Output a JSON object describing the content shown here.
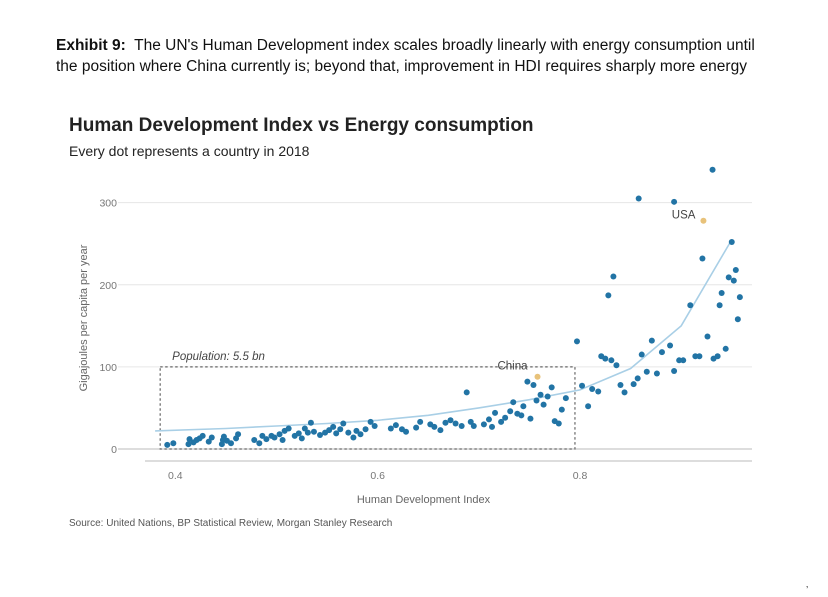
{
  "exhibit": {
    "label": "Exhibit 9:",
    "text": "The UN's Human Development index scales broadly linearly with energy consumption until the position where China currently is; beyond that, improvement in HDI requires sharply more energy"
  },
  "source": "Source: United Nations, BP Statistical Review, Morgan Stanley Research",
  "corner_mark": "’",
  "chart_data": {
    "type": "scatter",
    "title": "Human Development Index vs Energy consumption",
    "subtitle": "Every dot represents a country in 2018",
    "xlabel": "Human Development Index",
    "ylabel": "Gigajoules per capita per year",
    "xlim": [
      0.37,
      0.97
    ],
    "ylim": [
      0,
      330
    ],
    "xticks": [
      0.4,
      0.6,
      0.8
    ],
    "xtick_labels": [
      "0.4",
      "0.6",
      "0.8"
    ],
    "yticks": [
      0,
      100,
      200,
      300
    ],
    "ytick_labels": [
      "0",
      "100",
      "200",
      "300"
    ],
    "grid": true,
    "colors": {
      "dot": "#2274a5",
      "highlight": "#e8c27a",
      "trend": "#a9cfe6",
      "box": "#666666",
      "grid": "#e6e6e6"
    },
    "box": {
      "label": "Population: 5.5 bn",
      "x_range": [
        0.385,
        0.795
      ],
      "y_range": [
        0,
        100
      ]
    },
    "trend": {
      "x": [
        0.38,
        0.45,
        0.5,
        0.55,
        0.6,
        0.65,
        0.7,
        0.75,
        0.8,
        0.85,
        0.9,
        0.95
      ],
      "y": [
        22,
        25,
        28,
        31,
        35,
        41,
        50,
        60,
        72,
        98,
        150,
        255
      ]
    },
    "highlighted": [
      {
        "name": "China",
        "x": 0.758,
        "y": 88
      },
      {
        "name": "USA",
        "x": 0.922,
        "y": 278
      }
    ],
    "points": [
      [
        0.392,
        5
      ],
      [
        0.398,
        7
      ],
      [
        0.413,
        6
      ],
      [
        0.414,
        12
      ],
      [
        0.418,
        8
      ],
      [
        0.421,
        11
      ],
      [
        0.424,
        13
      ],
      [
        0.427,
        16
      ],
      [
        0.433,
        9
      ],
      [
        0.436,
        14
      ],
      [
        0.446,
        6
      ],
      [
        0.447,
        11
      ],
      [
        0.448,
        15
      ],
      [
        0.451,
        10
      ],
      [
        0.455,
        7
      ],
      [
        0.46,
        13
      ],
      [
        0.462,
        18
      ],
      [
        0.478,
        11
      ],
      [
        0.483,
        7
      ],
      [
        0.486,
        16
      ],
      [
        0.49,
        12
      ],
      [
        0.495,
        16
      ],
      [
        0.498,
        14
      ],
      [
        0.503,
        18
      ],
      [
        0.506,
        11
      ],
      [
        0.508,
        22
      ],
      [
        0.512,
        25
      ],
      [
        0.518,
        16
      ],
      [
        0.522,
        19
      ],
      [
        0.525,
        13
      ],
      [
        0.528,
        25
      ],
      [
        0.531,
        20
      ],
      [
        0.534,
        32
      ],
      [
        0.537,
        21
      ],
      [
        0.543,
        17
      ],
      [
        0.548,
        20
      ],
      [
        0.552,
        23
      ],
      [
        0.556,
        27
      ],
      [
        0.559,
        19
      ],
      [
        0.563,
        24
      ],
      [
        0.566,
        31
      ],
      [
        0.571,
        20
      ],
      [
        0.576,
        14
      ],
      [
        0.579,
        22
      ],
      [
        0.583,
        18
      ],
      [
        0.588,
        24
      ],
      [
        0.593,
        33
      ],
      [
        0.597,
        28
      ],
      [
        0.613,
        25
      ],
      [
        0.618,
        29
      ],
      [
        0.624,
        24
      ],
      [
        0.628,
        21
      ],
      [
        0.638,
        26
      ],
      [
        0.642,
        33
      ],
      [
        0.652,
        30
      ],
      [
        0.656,
        27
      ],
      [
        0.662,
        23
      ],
      [
        0.667,
        32
      ],
      [
        0.672,
        35
      ],
      [
        0.677,
        31
      ],
      [
        0.683,
        28
      ],
      [
        0.688,
        69
      ],
      [
        0.692,
        33
      ],
      [
        0.695,
        28
      ],
      [
        0.705,
        30
      ],
      [
        0.71,
        36
      ],
      [
        0.713,
        27
      ],
      [
        0.716,
        44
      ],
      [
        0.722,
        33
      ],
      [
        0.726,
        38
      ],
      [
        0.731,
        46
      ],
      [
        0.734,
        57
      ],
      [
        0.738,
        43
      ],
      [
        0.742,
        41
      ],
      [
        0.744,
        52
      ],
      [
        0.748,
        82
      ],
      [
        0.751,
        37
      ],
      [
        0.754,
        78
      ],
      [
        0.757,
        59
      ],
      [
        0.761,
        66
      ],
      [
        0.764,
        54
      ],
      [
        0.768,
        64
      ],
      [
        0.772,
        75
      ],
      [
        0.775,
        34
      ],
      [
        0.779,
        31
      ],
      [
        0.782,
        48
      ],
      [
        0.786,
        62
      ],
      [
        0.797,
        131
      ],
      [
        0.802,
        77
      ],
      [
        0.808,
        52
      ],
      [
        0.812,
        73
      ],
      [
        0.818,
        70
      ],
      [
        0.821,
        113
      ],
      [
        0.825,
        110
      ],
      [
        0.828,
        187
      ],
      [
        0.831,
        108
      ],
      [
        0.833,
        210
      ],
      [
        0.836,
        102
      ],
      [
        0.84,
        78
      ],
      [
        0.844,
        69
      ],
      [
        0.853,
        79
      ],
      [
        0.857,
        86
      ],
      [
        0.861,
        115
      ],
      [
        0.866,
        94
      ],
      [
        0.871,
        132
      ],
      [
        0.876,
        92
      ],
      [
        0.881,
        118
      ],
      [
        0.889,
        126
      ],
      [
        0.893,
        95
      ],
      [
        0.898,
        108
      ],
      [
        0.902,
        108
      ],
      [
        0.909,
        175
      ],
      [
        0.914,
        113
      ],
      [
        0.918,
        113
      ],
      [
        0.921,
        232
      ],
      [
        0.926,
        137
      ],
      [
        0.932,
        110
      ],
      [
        0.936,
        113
      ],
      [
        0.938,
        175
      ],
      [
        0.94,
        190
      ],
      [
        0.944,
        122
      ],
      [
        0.947,
        209
      ],
      [
        0.95,
        252
      ],
      [
        0.952,
        205
      ],
      [
        0.954,
        218
      ],
      [
        0.956,
        158
      ],
      [
        0.958,
        185
      ],
      [
        0.931,
        340
      ],
      [
        0.858,
        305
      ],
      [
        0.893,
        301
      ]
    ]
  }
}
